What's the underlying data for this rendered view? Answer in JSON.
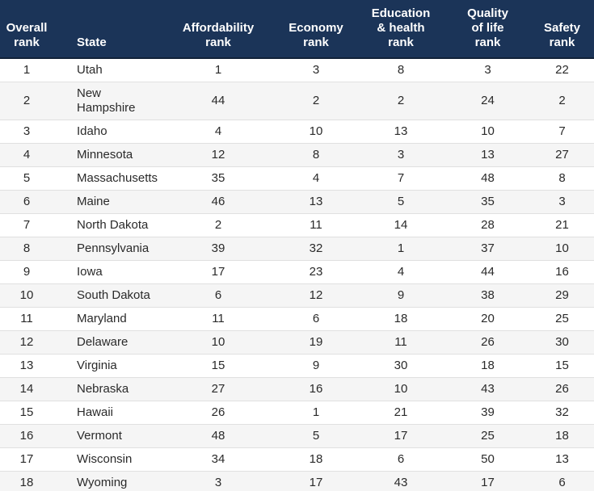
{
  "chart_data": {
    "type": "table",
    "title": "State rankings table",
    "columns": [
      "Overall rank",
      "State",
      "Affordability rank",
      "Economy rank",
      "Education & health rank",
      "Quality of life rank",
      "Safety rank"
    ],
    "rows": [
      [
        1,
        "Utah",
        1,
        3,
        8,
        3,
        22
      ],
      [
        2,
        "New Hampshire",
        44,
        2,
        2,
        24,
        2
      ],
      [
        3,
        "Idaho",
        4,
        10,
        13,
        10,
        7
      ],
      [
        4,
        "Minnesota",
        12,
        8,
        3,
        13,
        27
      ],
      [
        5,
        "Massachusetts",
        35,
        4,
        7,
        48,
        8
      ],
      [
        6,
        "Maine",
        46,
        13,
        5,
        35,
        3
      ],
      [
        7,
        "North Dakota",
        2,
        11,
        14,
        28,
        21
      ],
      [
        8,
        "Pennsylvania",
        39,
        32,
        1,
        37,
        10
      ],
      [
        9,
        "Iowa",
        17,
        23,
        4,
        44,
        16
      ],
      [
        10,
        "South Dakota",
        6,
        12,
        9,
        38,
        29
      ],
      [
        11,
        "Maryland",
        11,
        6,
        18,
        20,
        25
      ],
      [
        12,
        "Delaware",
        10,
        19,
        11,
        26,
        30
      ],
      [
        13,
        "Virginia",
        15,
        9,
        30,
        18,
        15
      ],
      [
        14,
        "Nebraska",
        27,
        16,
        10,
        43,
        26
      ],
      [
        15,
        "Hawaii",
        26,
        1,
        21,
        39,
        32
      ],
      [
        16,
        "Vermont",
        48,
        5,
        17,
        25,
        18
      ],
      [
        17,
        "Wisconsin",
        34,
        18,
        6,
        50,
        13
      ],
      [
        18,
        "Wyoming",
        3,
        17,
        43,
        17,
        6
      ]
    ]
  },
  "table": {
    "header_labels": [
      "Overall\nrank",
      "State",
      "Affordability\nrank",
      "Economy\nrank",
      "Education\n& health\nrank",
      "Quality\nof life\nrank",
      "Safety\nrank"
    ]
  },
  "colors": {
    "header_bg": "#1b3458",
    "header_text": "#ffffff",
    "header_border": "#122239",
    "row_bg": "#ffffff",
    "row_alt_bg": "#f5f5f5",
    "row_border": "#e0e0e0",
    "body_text": "#2a2a2a"
  }
}
